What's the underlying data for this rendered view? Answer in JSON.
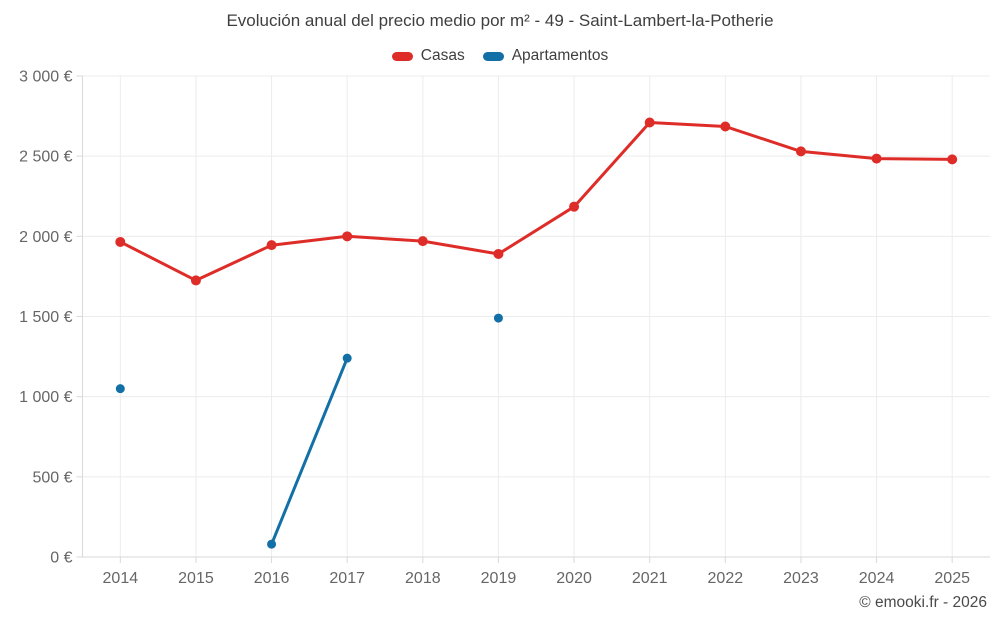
{
  "chart_data": {
    "type": "line",
    "title": "Evolución anual del precio medio por m² - 49 - Saint-Lambert-la-Potherie",
    "categories": [
      "2014",
      "2015",
      "2016",
      "2017",
      "2018",
      "2019",
      "2020",
      "2021",
      "2022",
      "2023",
      "2024",
      "2025"
    ],
    "series": [
      {
        "name": "Casas",
        "color": "#de2d28",
        "values": [
          1965,
          1725,
          1945,
          2000,
          1970,
          1890,
          2185,
          2710,
          2685,
          2530,
          2485,
          2480
        ]
      },
      {
        "name": "Apartamentos",
        "color": "#1370a6",
        "values": [
          1050,
          null,
          80,
          1240,
          null,
          1490,
          null,
          null,
          null,
          null,
          null,
          null
        ]
      }
    ],
    "ylim": [
      0,
      3000
    ],
    "ytick_values": [
      0,
      500,
      1000,
      1500,
      2000,
      2500,
      3000
    ],
    "ytick_labels": [
      "0 €",
      "500 €",
      "1 000 €",
      "1 500 €",
      "2 000 €",
      "2 500 €",
      "3 000 €"
    ],
    "grid": true,
    "legend_position": "top"
  },
  "footer": "© emooki.fr - 2026",
  "colors": {
    "grid": "#ececec",
    "axis": "#d9d9d9",
    "tick_text": "#666666",
    "title_text": "#3f3f3f"
  }
}
